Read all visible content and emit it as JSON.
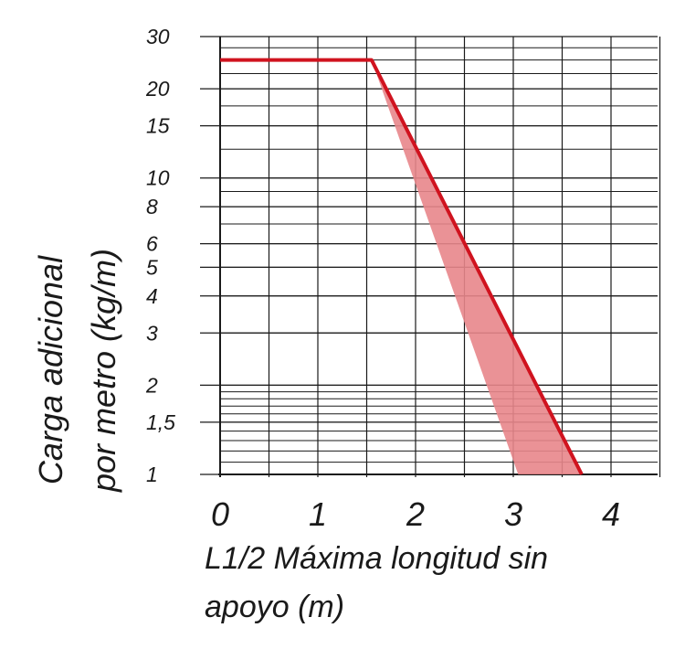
{
  "chart_data": {
    "type": "line",
    "y_scale": "log",
    "grid": true,
    "xlim": [
      0,
      4.5
    ],
    "ylim": [
      1,
      30
    ],
    "xticks": [
      "0",
      "1",
      "2",
      "3",
      "4"
    ],
    "yticks": [
      {
        "value": 30,
        "label": "30"
      },
      {
        "value": 20,
        "label": "20"
      },
      {
        "value": 15,
        "label": "15"
      },
      {
        "value": 10,
        "label": "10"
      },
      {
        "value": 8,
        "label": "8"
      },
      {
        "value": 6,
        "label": "6"
      },
      {
        "value": 5,
        "label": "5"
      },
      {
        "value": 4,
        "label": "4"
      },
      {
        "value": 3,
        "label": "3"
      },
      {
        "value": 2,
        "label": "2"
      },
      {
        "value": 1.5,
        "label": "1,5"
      },
      {
        "value": 1,
        "label": "1"
      }
    ],
    "ylabel_lines": [
      "Carga adicional",
      "por metro (kg/m)"
    ],
    "xlabel_lines": [
      "L1/2 Máxima longitud sin",
      "apoyo (m)"
    ],
    "line": {
      "x": [
        0,
        1.55,
        3.7
      ],
      "y": [
        25,
        25,
        1
      ]
    },
    "band": {
      "x": [
        1.55,
        3.7,
        3.05
      ],
      "y": [
        25,
        1,
        1
      ]
    },
    "colors": {
      "line": "#d0131f",
      "band": "#e8868b",
      "grid": "#1a1a1a"
    }
  }
}
